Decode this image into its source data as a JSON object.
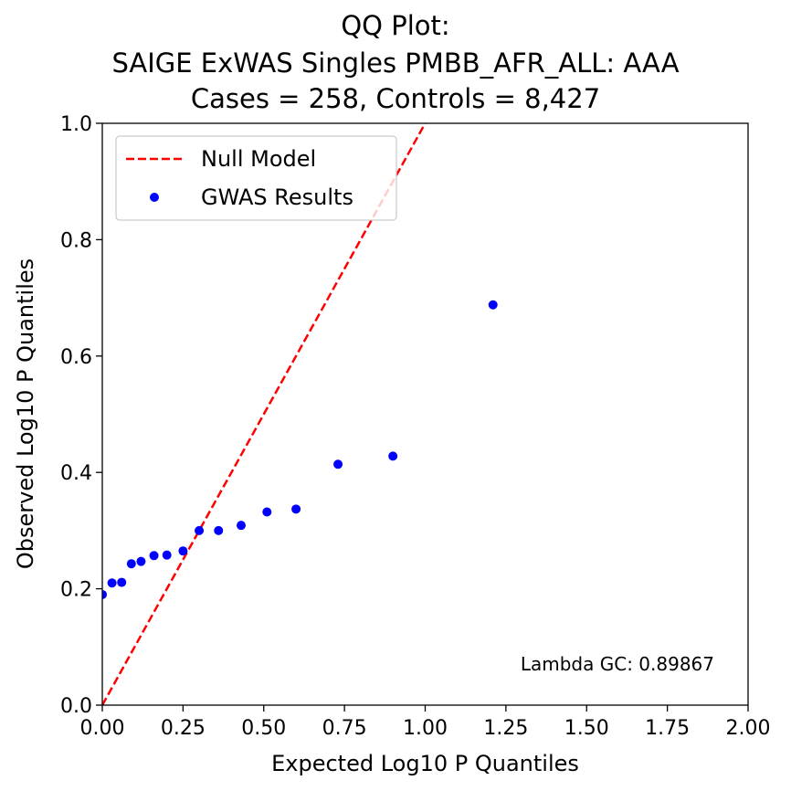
{
  "chart_data": {
    "type": "scatter",
    "title_lines": [
      "QQ Plot:",
      "SAIGE ExWAS Singles PMBB_AFR_ALL: AAA",
      "Cases = 258, Controls = 8,427"
    ],
    "xlabel": "Expected Log10 P Quantiles",
    "ylabel": "Observed Log10 P Quantiles",
    "xlim": [
      0,
      2
    ],
    "ylim": [
      0,
      1
    ],
    "xticks": [
      "0.00",
      "0.25",
      "0.50",
      "0.75",
      "1.00",
      "1.25",
      "1.50",
      "1.75",
      "2.00"
    ],
    "yticks": [
      "0.0",
      "0.2",
      "0.4",
      "0.6",
      "0.8",
      "1.0"
    ],
    "grid": false,
    "legend_position": "top-left",
    "series": [
      {
        "name": "Null Model",
        "kind": "line",
        "style": "dashed",
        "color": "#ff0000",
        "x": [
          0,
          1
        ],
        "y": [
          0,
          1
        ]
      },
      {
        "name": "GWAS Results",
        "kind": "scatter",
        "color": "#0000ff",
        "x": [
          0.0,
          0.03,
          0.06,
          0.09,
          0.12,
          0.16,
          0.2,
          0.25,
          0.3,
          0.36,
          0.43,
          0.51,
          0.6,
          0.73,
          0.9,
          1.21
        ],
        "y": [
          0.19,
          0.21,
          0.211,
          0.243,
          0.247,
          0.257,
          0.258,
          0.265,
          0.3,
          0.3,
          0.309,
          0.332,
          0.337,
          0.414,
          0.428,
          0.688
        ]
      }
    ],
    "annotation": "Lambda GC: 0.89867"
  }
}
